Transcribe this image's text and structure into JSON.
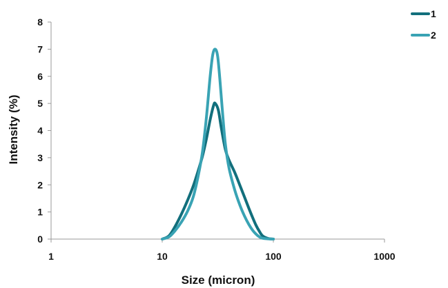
{
  "chart_data": {
    "type": "line",
    "xlabel": "Size (micron)",
    "ylabel": "Intensity (%)",
    "xscale": "log",
    "xlim": [
      1,
      1000
    ],
    "ylim": [
      0,
      8
    ],
    "xticks": [
      "1",
      "10",
      "100",
      "1000"
    ],
    "yticks": [
      "0",
      "1",
      "2",
      "3",
      "4",
      "5",
      "6",
      "7",
      "8"
    ],
    "grid": false,
    "legend": "top-right",
    "series": [
      {
        "name": "1",
        "color": "#126f7c",
        "x": [
          10,
          11.5,
          13,
          15,
          17,
          19,
          21,
          23,
          25,
          27,
          29,
          30,
          32,
          34,
          37,
          40,
          45,
          50,
          55,
          60,
          65,
          70,
          75,
          80,
          90,
          100
        ],
        "y": [
          0,
          0.12,
          0.45,
          0.95,
          1.45,
          1.95,
          2.5,
          3.05,
          3.7,
          4.4,
          4.93,
          5.0,
          4.75,
          4.1,
          3.3,
          2.9,
          2.45,
          1.98,
          1.55,
          1.15,
          0.8,
          0.5,
          0.28,
          0.12,
          0.02,
          0
        ]
      },
      {
        "name": "2",
        "color": "#39a3b4",
        "x": [
          10,
          11.5,
          13,
          15,
          17,
          19,
          21,
          23,
          25,
          27,
          28.5,
          30,
          31.5,
          33,
          35,
          37,
          40,
          45,
          50,
          55,
          60,
          65,
          70,
          75,
          80,
          90,
          100
        ],
        "y": [
          0,
          0.08,
          0.3,
          0.65,
          1.05,
          1.55,
          2.3,
          3.2,
          4.5,
          6.0,
          6.8,
          7.0,
          6.75,
          5.9,
          4.6,
          3.5,
          2.6,
          1.8,
          1.25,
          0.85,
          0.55,
          0.33,
          0.18,
          0.08,
          0.03,
          0.01,
          0
        ]
      }
    ]
  }
}
